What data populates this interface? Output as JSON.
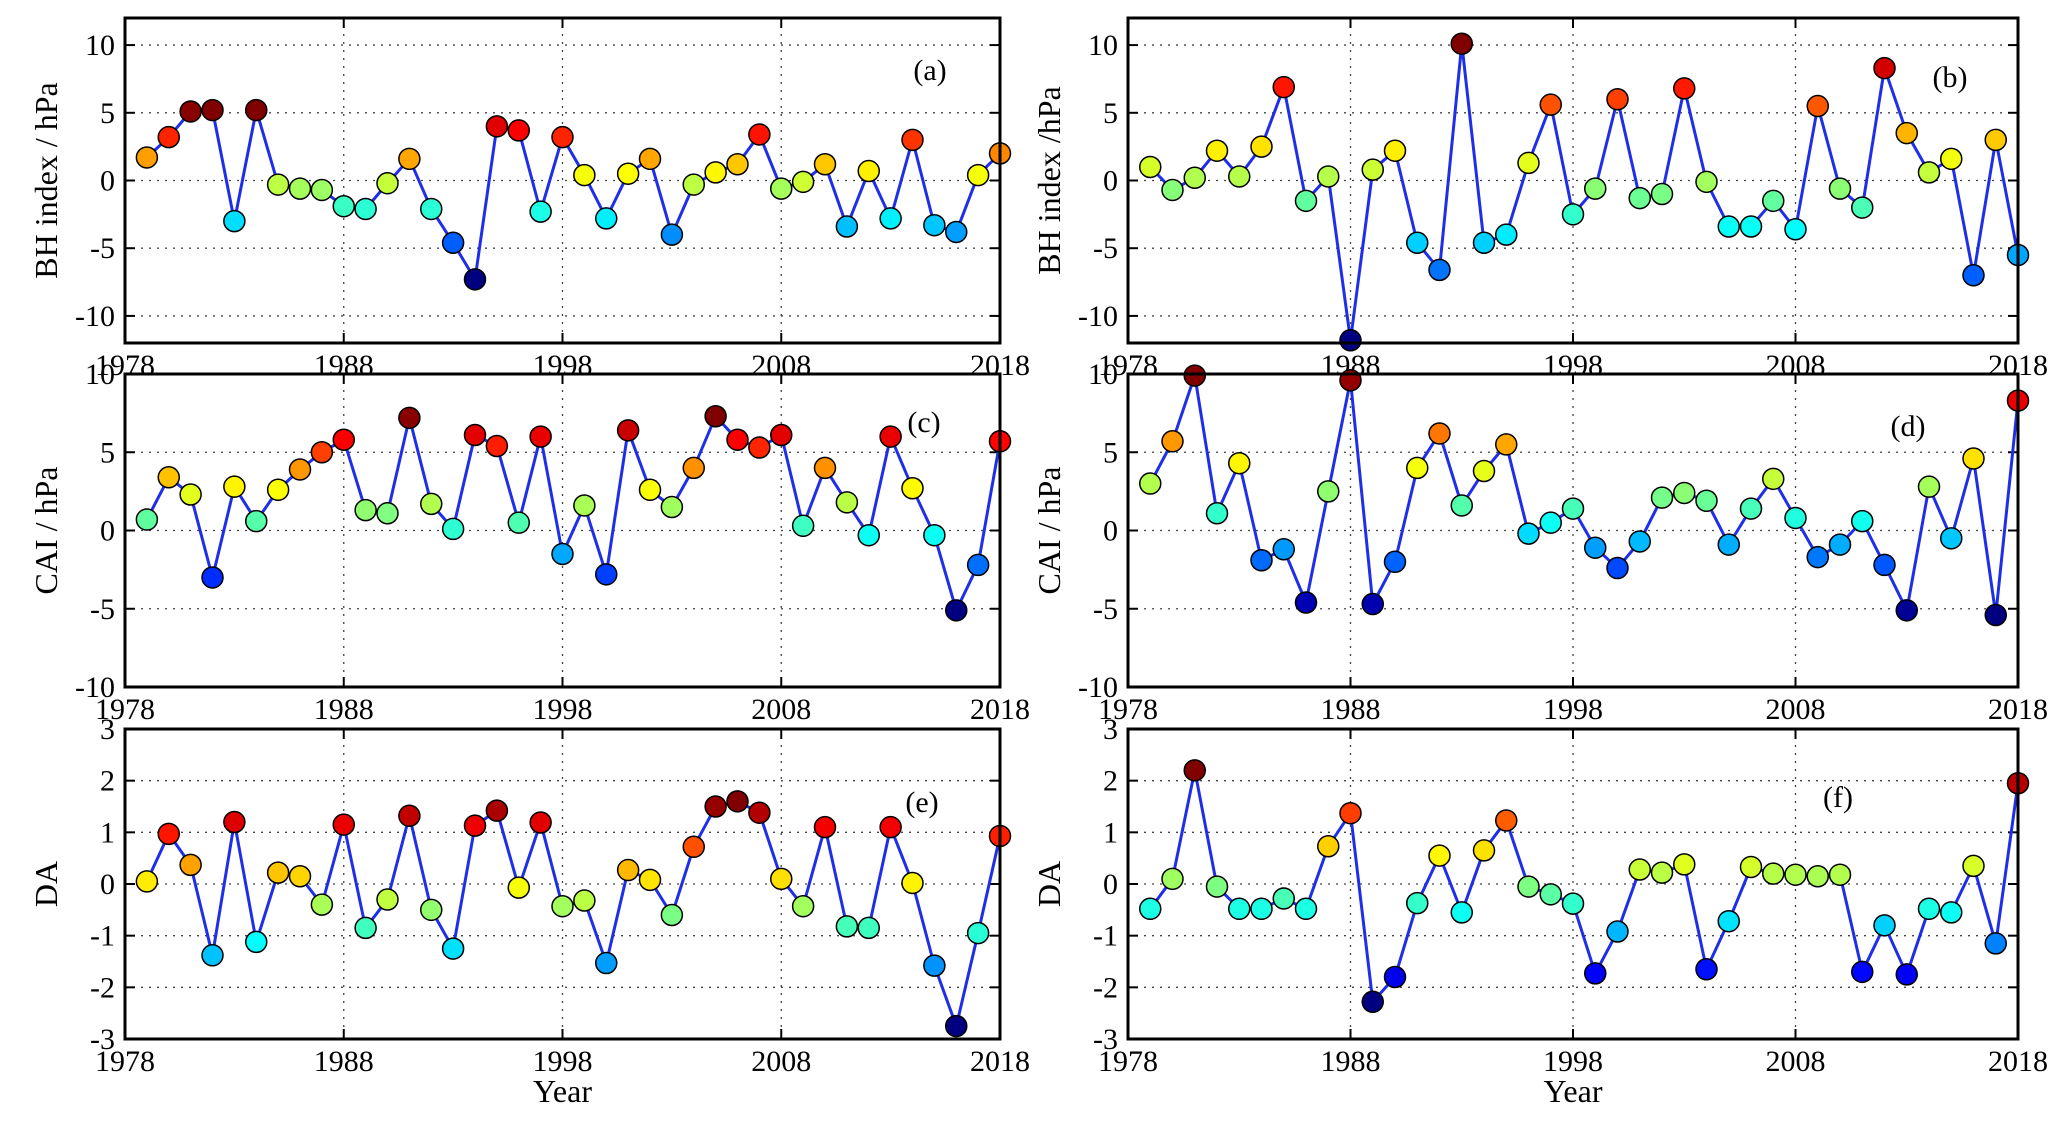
{
  "colors": {
    "line": "#1f2fe8",
    "grid": "#444444",
    "frame": "#000000"
  },
  "chart_data": [
    {
      "type": "line",
      "panel": "(a)",
      "ylabel": "BH index / hPa",
      "xlabel": "",
      "xlim": [
        1978,
        2018
      ],
      "ylim": [
        -12,
        12
      ],
      "xticks": [
        "1978",
        "1988",
        "1998",
        "2008",
        "2018"
      ],
      "yticks": [
        -10,
        -5,
        0,
        5,
        10
      ],
      "ytick_labels": [
        "-10",
        "-5",
        "0",
        "5",
        "10"
      ],
      "x": [
        1979,
        1980,
        1981,
        1982,
        1983,
        1984,
        1985,
        1986,
        1987,
        1988,
        1989,
        1990,
        1991,
        1992,
        1993,
        1994,
        1995,
        1996,
        1997,
        1998,
        1999,
        2000,
        2001,
        2002,
        2003,
        2004,
        2005,
        2006,
        2007,
        2008,
        2009,
        2010,
        2011,
        2012,
        2013,
        2014,
        2015,
        2016,
        2017,
        2018
      ],
      "values": [
        1.7,
        3.2,
        5.1,
        5.2,
        -3.0,
        5.2,
        -0.3,
        -0.6,
        -0.7,
        -1.9,
        -2.1,
        -0.2,
        1.6,
        -2.1,
        -4.6,
        -7.3,
        4.0,
        3.7,
        -2.3,
        3.2,
        0.4,
        -2.8,
        0.5,
        1.6,
        -4.0,
        -0.3,
        0.6,
        1.2,
        3.4,
        -0.6,
        -0.1,
        1.2,
        -3.4,
        0.7,
        -2.8,
        3.0,
        -3.3,
        -3.8,
        0.4,
        2.0
      ]
    },
    {
      "type": "line",
      "panel": "(b)",
      "ylabel": "BH index /hPa",
      "xlabel": "",
      "xlim": [
        1978,
        2018
      ],
      "ylim": [
        -12,
        12
      ],
      "xticks": [
        "1978",
        "1988",
        "1998",
        "2008",
        "2018"
      ],
      "yticks": [
        -10,
        -5,
        0,
        5,
        10
      ],
      "ytick_labels": [
        "-10",
        "-5",
        "0",
        "5",
        "10"
      ],
      "x": [
        1979,
        1980,
        1981,
        1982,
        1983,
        1984,
        1985,
        1986,
        1987,
        1988,
        1989,
        1990,
        1991,
        1992,
        1993,
        1994,
        1995,
        1996,
        1997,
        1998,
        1999,
        2000,
        2001,
        2002,
        2003,
        2004,
        2005,
        2006,
        2007,
        2008,
        2009,
        2010,
        2011,
        2012,
        2013,
        2014,
        2015,
        2016,
        2017,
        2018
      ],
      "values": [
        1.0,
        -0.7,
        0.2,
        2.2,
        0.3,
        2.5,
        6.9,
        -1.5,
        0.3,
        -11.8,
        0.8,
        2.2,
        -4.6,
        -6.6,
        10.1,
        -4.6,
        -4.0,
        1.3,
        5.6,
        -2.5,
        -0.6,
        6.0,
        -1.3,
        -1.0,
        6.8,
        -0.1,
        -3.4,
        -3.4,
        -1.5,
        -3.6,
        5.5,
        -0.6,
        -2.0,
        8.3,
        3.5,
        0.6,
        1.6,
        -7.0,
        3.0,
        -5.5
      ]
    },
    {
      "type": "line",
      "panel": "(c)",
      "ylabel": "CAI / hPa",
      "xlabel": "",
      "xlim": [
        1978,
        2018
      ],
      "ylim": [
        -10,
        10
      ],
      "xticks": [
        "1978",
        "1988",
        "1998",
        "2008",
        "2018"
      ],
      "yticks": [
        -10,
        -5,
        0,
        5,
        10
      ],
      "ytick_labels": [
        "-10",
        "-5",
        "0",
        "5",
        "10"
      ],
      "x": [
        1979,
        1980,
        1981,
        1982,
        1983,
        1984,
        1985,
        1986,
        1987,
        1988,
        1989,
        1990,
        1991,
        1992,
        1993,
        1994,
        1995,
        1996,
        1997,
        1998,
        1999,
        2000,
        2001,
        2002,
        2003,
        2004,
        2005,
        2006,
        2007,
        2008,
        2009,
        2010,
        2011,
        2012,
        2013,
        2014,
        2015,
        2016,
        2017,
        2018
      ],
      "values": [
        0.7,
        3.4,
        2.3,
        -3.0,
        2.8,
        0.6,
        2.6,
        3.9,
        5.0,
        5.8,
        1.3,
        1.1,
        7.2,
        1.7,
        0.1,
        6.1,
        5.4,
        0.5,
        6.0,
        -1.5,
        1.6,
        -2.8,
        6.4,
        2.6,
        1.5,
        4.0,
        7.3,
        5.8,
        5.3,
        6.1,
        0.3,
        4.0,
        1.8,
        -0.3,
        6.0,
        2.7,
        -0.3,
        -5.1,
        -2.2,
        5.7
      ]
    },
    {
      "type": "line",
      "panel": "(d)",
      "ylabel": "CAI / hPa",
      "xlabel": "",
      "xlim": [
        1978,
        2018
      ],
      "ylim": [
        -10,
        10
      ],
      "xticks": [
        "1978",
        "1988",
        "1998",
        "2008",
        "2018"
      ],
      "yticks": [
        -10,
        -5,
        0,
        5,
        10
      ],
      "ytick_labels": [
        "-10",
        "-5",
        "0",
        "5",
        "10"
      ],
      "x": [
        1979,
        1980,
        1981,
        1982,
        1983,
        1984,
        1985,
        1986,
        1987,
        1988,
        1989,
        1990,
        1991,
        1992,
        1993,
        1994,
        1995,
        1996,
        1997,
        1998,
        1999,
        2000,
        2001,
        2002,
        2003,
        2004,
        2005,
        2006,
        2007,
        2008,
        2009,
        2010,
        2011,
        2012,
        2013,
        2014,
        2015,
        2016,
        2017,
        2018
      ],
      "values": [
        3.0,
        5.7,
        9.9,
        1.1,
        4.3,
        -1.9,
        -1.2,
        -4.6,
        2.5,
        9.6,
        -4.7,
        -2.0,
        4.0,
        6.2,
        1.6,
        3.8,
        5.5,
        -0.2,
        0.5,
        1.4,
        -1.1,
        -2.4,
        -0.7,
        2.1,
        2.4,
        1.9,
        -0.9,
        1.4,
        3.3,
        0.8,
        -1.7,
        -0.9,
        0.6,
        -2.2,
        -5.1,
        2.8,
        -0.5,
        4.6,
        -5.4,
        8.3
      ]
    },
    {
      "type": "line",
      "panel": "(e)",
      "ylabel": "DA",
      "xlabel": "Year",
      "xlim": [
        1978,
        2018
      ],
      "ylim": [
        -3,
        3
      ],
      "xticks": [
        "1978",
        "1988",
        "1998",
        "2008",
        "2018"
      ],
      "yticks": [
        -3,
        -2,
        -1,
        0,
        1,
        2,
        3
      ],
      "ytick_labels": [
        "-3",
        "-2",
        "-1",
        "0",
        "1",
        "2",
        "3"
      ],
      "x": [
        1979,
        1980,
        1981,
        1982,
        1983,
        1984,
        1985,
        1986,
        1987,
        1988,
        1989,
        1990,
        1991,
        1992,
        1993,
        1994,
        1995,
        1996,
        1997,
        1998,
        1999,
        2000,
        2001,
        2002,
        2003,
        2004,
        2005,
        2006,
        2007,
        2008,
        2009,
        2010,
        2011,
        2012,
        2013,
        2014,
        2015,
        2016,
        2017,
        2018
      ],
      "values": [
        0.05,
        0.97,
        0.37,
        -1.38,
        1.2,
        -1.12,
        0.22,
        0.15,
        -0.4,
        1.15,
        -0.85,
        -0.3,
        1.32,
        -0.5,
        -1.25,
        1.13,
        1.42,
        -0.07,
        1.19,
        -0.43,
        -0.32,
        -1.53,
        0.27,
        0.08,
        -0.6,
        0.72,
        1.5,
        1.6,
        1.38,
        0.1,
        -0.43,
        1.1,
        -0.82,
        -0.85,
        1.1,
        0.02,
        -1.58,
        -2.75,
        -0.95,
        0.93
      ]
    },
    {
      "type": "line",
      "panel": "(f)",
      "ylabel": "DA",
      "xlabel": "Year",
      "xlim": [
        1978,
        2018
      ],
      "ylim": [
        -3,
        3
      ],
      "xticks": [
        "1978",
        "1988",
        "1998",
        "2008",
        "2018"
      ],
      "yticks": [
        -3,
        -2,
        -1,
        0,
        1,
        2,
        3
      ],
      "ytick_labels": [
        "-3",
        "-2",
        "-1",
        "0",
        "1",
        "2",
        "3"
      ],
      "x": [
        1979,
        1980,
        1981,
        1982,
        1983,
        1984,
        1985,
        1986,
        1987,
        1988,
        1989,
        1990,
        1991,
        1992,
        1993,
        1994,
        1995,
        1996,
        1997,
        1998,
        1999,
        2000,
        2001,
        2002,
        2003,
        2004,
        2005,
        2006,
        2007,
        2008,
        2009,
        2010,
        2011,
        2012,
        2013,
        2014,
        2015,
        2016,
        2017,
        2018
      ],
      "values": [
        -0.48,
        0.1,
        2.2,
        -0.05,
        -0.48,
        -0.48,
        -0.28,
        -0.48,
        0.73,
        1.37,
        -2.28,
        -1.8,
        -0.37,
        0.55,
        -0.55,
        0.65,
        1.23,
        -0.05,
        -0.2,
        -0.38,
        -1.73,
        -0.92,
        0.28,
        0.22,
        0.38,
        -1.65,
        -0.72,
        0.33,
        0.2,
        0.18,
        0.15,
        0.18,
        -1.7,
        -0.8,
        -1.75,
        -0.48,
        -0.55,
        0.35,
        -1.15,
        1.95
      ]
    }
  ]
}
